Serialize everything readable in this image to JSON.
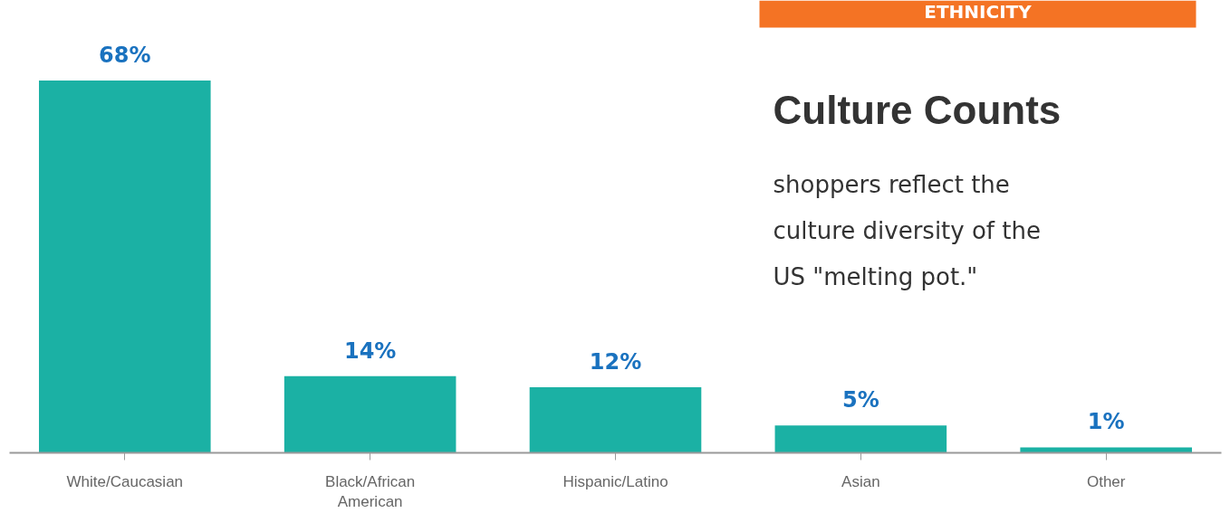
{
  "chart_data": {
    "type": "bar",
    "title": "Culture Counts",
    "subtitle": "shoppers reflect the culture diversity of the US \"melting pot.\"",
    "annotations": [
      "ETHNICITY"
    ],
    "categories": [
      "White/Caucasian",
      "Black/African American",
      "Hispanic/Latino",
      "Asian",
      "Other"
    ],
    "values": [
      68,
      14,
      12,
      5,
      1
    ],
    "color": "#1bb1a4",
    "value_labels": [
      "68%",
      "14%",
      "12%",
      "5%",
      "1%"
    ],
    "grid": false
  }
}
